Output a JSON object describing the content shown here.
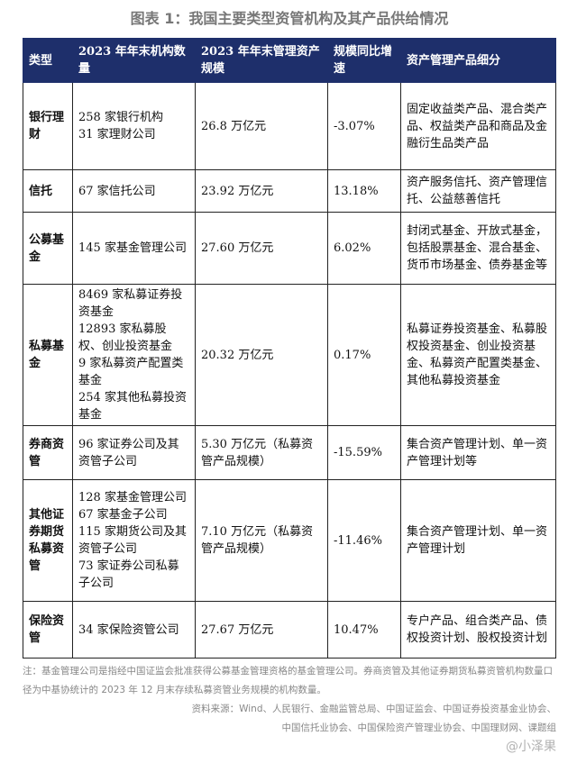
{
  "title": "图表 1：我国主要类型资管机构及其产品供给情况",
  "headers": [
    "类型",
    "2023 年年末机构数量",
    "2023 年年末管理资产规模",
    "规模同比增速",
    "资产管理产品细分"
  ],
  "rows": [
    [
      "银行理财",
      "258 家银行机构\n31 家理财公司",
      "26.8 万亿元",
      "-3.07%",
      "固定收益类产品、混合类产品、权益类产品和商品及金融衍生品类产品"
    ],
    [
      "信托",
      "67 家信托公司",
      "23.92 万亿元",
      "13.18%",
      "资产服务信托、资产管理信托、公益慈善信托"
    ],
    [
      "公募基金",
      "145 家基金管理公司",
      "27.60 万亿元",
      "6.02%",
      "封闭式基金、开放式基金，包括股票基金、混合基金、货币市场基金、债券基金等"
    ],
    [
      "私募基金",
      "8469 家私募证券投资基金\n12893 家私募股权、创业投资基金\n9 家私募资产配置类基金\n254 家其他私募投资基金",
      "20.32 万亿元",
      "0.17%",
      "私募证券投资基金、私募股权投资基金、创业投资基金、私募资产配置类基金、其他私募投资基金"
    ],
    [
      "券商资管",
      "96 家证券公司及其资管子公司",
      "5.30 万亿元（私募资管产品规模）",
      "-15.59%",
      "集合资产管理计划、单一资产管理计划等"
    ],
    [
      "其他证券期货私募资管",
      "128 家基金管理公司\n67 家基金子公司\n115 家期货公司及其资管子公司\n73 家证券公司私募子公司",
      "7.10 万亿元（私募资管产品规模）",
      "-11.46%",
      "集合资产管理计划、单一资产管理计划"
    ],
    [
      "保险资管",
      "34 家保险资管公司",
      "27.67 万亿元",
      "10.47%",
      "专户产品、组合类产品、债权投资计划、股权投资计划"
    ]
  ],
  "note": "注：基金管理公司是指经中国证监会批准获得公募基金管理资格的基金管理公司。券商资管及其他证券期货私募资管机构数量口径为中基协统计的 2023 年 12 月末存续私募资管业务规模的机构数量。",
  "source_line1": "资料来源：Wind、人民银行、金融监管总局、中国证监会、中国证券投资基金业协会、",
  "source_line2": "中国信托业协会、中国保险资产管理业协会、中国理财网、课题组",
  "watermark": "@小泽果"
}
